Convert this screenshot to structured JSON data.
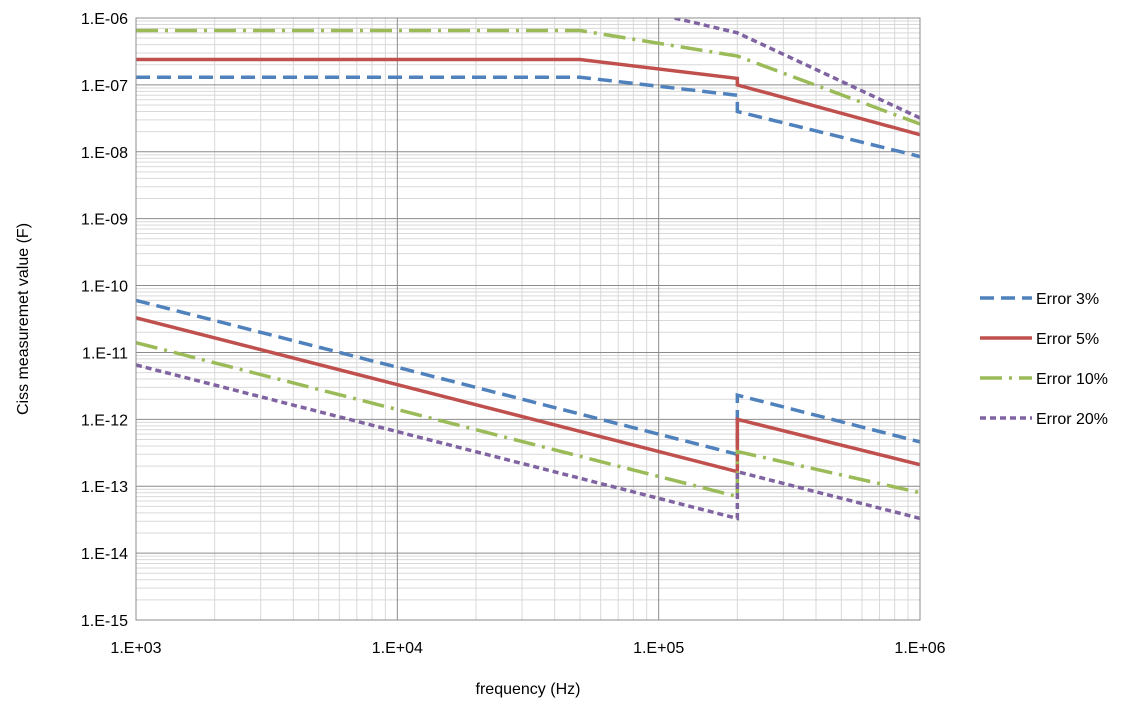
{
  "chart_data": {
    "type": "line",
    "title": "",
    "xlabel": "frequency (Hz)",
    "ylabel": "Ciss measuremet value (F)",
    "x_scale": "log",
    "y_scale": "log",
    "xlim": [
      1000,
      1000000
    ],
    "ylim": [
      1e-15,
      1e-06
    ],
    "x_ticks": [
      1000,
      10000,
      100000,
      1000000
    ],
    "x_tick_labels": [
      "1.E+03",
      "1.E+04",
      "1.E+05",
      "1.E+06"
    ],
    "y_ticks": [
      1e-15,
      1e-14,
      1e-13,
      1e-12,
      1e-11,
      1e-10,
      1e-09,
      1e-08,
      1e-07,
      1e-06
    ],
    "y_tick_labels": [
      "1.E-15",
      "1.E-14",
      "1.E-13",
      "1.E-12",
      "1.E-11",
      "1.E-10",
      "1.E-09",
      "1.E-08",
      "1.E-07",
      "1.E-06"
    ],
    "grid": true,
    "minor_grid": true,
    "legend_position": "right",
    "series": [
      {
        "name": "Error 3%",
        "color": "#4f81bd",
        "dash": "long-dash",
        "upper": [
          [
            1000,
            1.3e-07
          ],
          [
            50000,
            1.3e-07
          ],
          [
            200000,
            7e-08
          ],
          [
            200000,
            4e-08
          ],
          [
            1000000,
            8.5e-09
          ]
        ],
        "lower": [
          [
            1000,
            6e-11
          ],
          [
            200000,
            3e-13
          ],
          [
            200000,
            2.3e-12
          ],
          [
            1000000,
            4.6e-13
          ]
        ]
      },
      {
        "name": "Error 5%",
        "color": "#c0504d",
        "dash": "solid",
        "upper": [
          [
            1000,
            2.4e-07
          ],
          [
            50000,
            2.4e-07
          ],
          [
            200000,
            1.25e-07
          ],
          [
            200000,
            1e-07
          ],
          [
            1000000,
            1.8e-08
          ]
        ],
        "lower": [
          [
            1000,
            3.3e-11
          ],
          [
            200000,
            1.65e-13
          ],
          [
            200000,
            1e-12
          ],
          [
            1000000,
            2.1e-13
          ]
        ]
      },
      {
        "name": "Error 10%",
        "color": "#9bbb59",
        "dash": "dash-dot",
        "upper": [
          [
            1000,
            6.5e-07
          ],
          [
            50000,
            6.5e-07
          ],
          [
            200000,
            2.7e-07
          ],
          [
            1000000,
            2.6e-08
          ]
        ],
        "lower": [
          [
            1000,
            1.4e-11
          ],
          [
            200000,
            7e-14
          ],
          [
            200000,
            3.3e-13
          ],
          [
            1000000,
            8e-14
          ]
        ]
      },
      {
        "name": "Error 20%",
        "color": "#8064a2",
        "dash": "short-dash",
        "upper": [
          [
            115000,
            1e-06
          ],
          [
            200000,
            6e-07
          ],
          [
            1000000,
            3.2e-08
          ]
        ],
        "lower": [
          [
            1000,
            6.5e-12
          ],
          [
            200000,
            3.3e-14
          ],
          [
            200000,
            1.65e-13
          ],
          [
            1000000,
            3.3e-14
          ]
        ]
      }
    ]
  }
}
